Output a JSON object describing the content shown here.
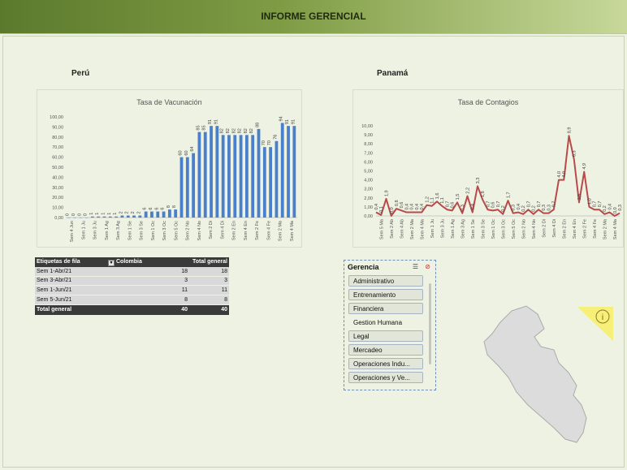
{
  "header": {
    "title": "INFORME GERENCIAL"
  },
  "sections": {
    "left_country": "Perú",
    "right_country": "Panamá"
  },
  "colors": {
    "bar": "#4a7fcb",
    "line": "#b84a4a",
    "banner": "#5b7a2c"
  },
  "chart_data": [
    {
      "type": "bar",
      "title": "Tasa de Vacunación",
      "ylim": [
        0,
        100
      ],
      "yticks": [
        "0,00",
        "10,00",
        "20,00",
        "30,00",
        "40,00",
        "50,00",
        "60,00",
        "70,00",
        "80,00",
        "90,00",
        "100,00"
      ],
      "categories": [
        "Sem 4 Jun",
        "Sem 1 Ju",
        "Sem 3 Ju",
        "Sem 1 Ag",
        "Sem 3 Ag",
        "Sem 1 Se",
        "Sem 3 Se",
        "Sem 1 Oc",
        "Sem 3 Oc",
        "Sem 5 Oc",
        "Sem 2 No",
        "Sem 4 No",
        "Sem 2 Di",
        "Sem 4 Di",
        "Sem 2 En",
        "Sem 4 En",
        "Sem 2 Fe",
        "Sem 4 Fe",
        "Sem 2 Ma",
        "Sem 4 Ma"
      ],
      "values": [
        0,
        0,
        0,
        0,
        1,
        1,
        1,
        1,
        1,
        2,
        2,
        2,
        2,
        6,
        6,
        6,
        6,
        8,
        8,
        60,
        60,
        64,
        85,
        85,
        91,
        91,
        82,
        82,
        82,
        82,
        82,
        82,
        88,
        70,
        70,
        76,
        94,
        91,
        91
      ],
      "labels": [
        "0",
        "0",
        "0",
        "0",
        "1",
        "1",
        "1",
        "1",
        "1",
        "2",
        "2",
        "2",
        "2",
        "6",
        "6",
        "6",
        "6",
        "8",
        "8",
        "60",
        "60",
        "64",
        "85",
        "85",
        "91",
        "91",
        "82",
        "82",
        "82",
        "82",
        "82",
        "82",
        "88",
        "70",
        "70",
        "76",
        "94",
        "91",
        "91"
      ]
    },
    {
      "type": "line",
      "title": "Tasa de Contagios",
      "ylim": [
        0,
        10
      ],
      "yticks": [
        "0,00",
        "1,00",
        "2,00",
        "3,00",
        "4,00",
        "5,00",
        "6,00",
        "7,00",
        "8,00",
        "9,00",
        "10,00"
      ],
      "categories": [
        "Sem 5 Ma",
        "Sem 2 Ab",
        "Sem 4 Ab",
        "Sem 2 Ma",
        "Sem 4 Ma",
        "Sem 1 Ju",
        "Sem 3 Ju",
        "Sem 1 Ag",
        "Sem 3 Ag",
        "Sem 1 Se",
        "Sem 3 Se",
        "Sem 1 Oc",
        "Sem 3 Oc",
        "Sem 5 Oc",
        "Sem 2 No",
        "Sem 4 No",
        "Sem 2 Di",
        "Sem 4 Di",
        "Sem 2 En",
        "Sem 4 En",
        "Sem 2 Fe",
        "Sem 4 Fe",
        "Sem 2 Ma",
        "Sem 4 Ma"
      ],
      "values": [
        0.4,
        0.1,
        1.9,
        0.0,
        0.8,
        0.6,
        0.4,
        0.4,
        0.4,
        0.4,
        1.2,
        1.1,
        1.6,
        1.1,
        0.7,
        0.6,
        1.5,
        0.3,
        2.2,
        0.4,
        3.3,
        1.8,
        0.7,
        0.6,
        0.7,
        0.2,
        1.7,
        0.3,
        0.4,
        0.2,
        0.7,
        0.2,
        0.7,
        0.3,
        0.3,
        0.7,
        4.0,
        4.0,
        8.9,
        6.3,
        1.5,
        4.9,
        1.0,
        0.7,
        0.7,
        0.2,
        0.4,
        0.0,
        0.3
      ],
      "labels": [
        "0,4",
        "0,1",
        "1,9",
        "0,0",
        "0,8",
        "0,6",
        "0,4",
        "0,4",
        "0,4",
        "0,4",
        "1,2",
        "1,1",
        "1,6",
        "1,1",
        "0,7",
        "0,6",
        "1,5",
        "0,3",
        "2,2",
        "0,4",
        "3,3",
        "1,8",
        "0,7",
        "0,6",
        "0,7",
        "0,2",
        "1,7",
        "0,3",
        "0,4",
        "0,2",
        "0,7",
        "0,2",
        "0,7",
        "0,3",
        "0,3",
        "0,7",
        "4,0",
        "4,0",
        "8,9",
        "6,3",
        "1,5",
        "4,9",
        "1,0",
        "0,7",
        "0,7",
        "0,2",
        "0,4",
        "0,0",
        "0,3"
      ]
    }
  ],
  "pivot": {
    "headers": [
      "Etiquetas de fila",
      "Colombia",
      "Total general"
    ],
    "filter_glyph": "▾",
    "rows": [
      {
        "label": "Sem 1-Abr/21",
        "colombia": "18",
        "total": "18"
      },
      {
        "label": "Sem 3-Abr/21",
        "colombia": "3",
        "total": "3"
      },
      {
        "label": "Sem 1-Jun/21",
        "colombia": "11",
        "total": "11"
      },
      {
        "label": "Sem 5-Jun/21",
        "colombia": "8",
        "total": "8"
      }
    ],
    "total": {
      "label": "Total general",
      "colombia": "40",
      "total": "40"
    }
  },
  "slicer": {
    "title": "Gerencia",
    "multiselect_glyph": "☰",
    "clear_glyph": "⊘",
    "items": [
      {
        "label": "Administrativo",
        "selected": true
      },
      {
        "label": "Entrenamiento",
        "selected": true
      },
      {
        "label": "Financiera",
        "selected": true
      },
      {
        "label": "Gestion Humana",
        "selected": false
      },
      {
        "label": "Legal",
        "selected": true
      },
      {
        "label": "Mercadeo",
        "selected": true
      },
      {
        "label": "Operaciones Indu...",
        "selected": true
      },
      {
        "label": "Operaciones y Ve...",
        "selected": true
      }
    ]
  },
  "info_badge": {
    "glyph": "i",
    "icon": "info-icon"
  }
}
